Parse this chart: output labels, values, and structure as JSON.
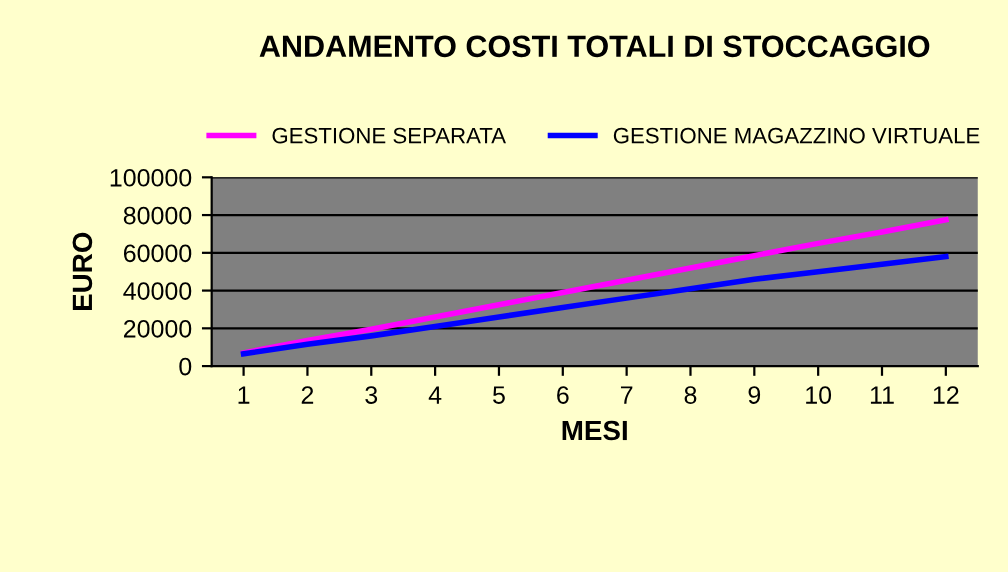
{
  "chart_data": {
    "type": "line",
    "title": "ANDAMENTO COSTI TOTALI DI STOCCAGGIO",
    "xlabel": "MESI",
    "ylabel": "EURO",
    "categories": [
      "1",
      "2",
      "3",
      "4",
      "5",
      "6",
      "7",
      "8",
      "9",
      "10",
      "11",
      "12"
    ],
    "series": [
      {
        "name": "GESTIONE SEPARATA",
        "color": "#ff00ff",
        "values": [
          7000,
          13500,
          19500,
          26000,
          32500,
          39000,
          45500,
          52000,
          58500,
          65000,
          71000,
          77500
        ]
      },
      {
        "name": "GESTIONE MAGAZZINO VIRTUALE",
        "color": "#0000ff",
        "values": [
          6500,
          11500,
          16000,
          21000,
          26000,
          31000,
          36000,
          41000,
          46000,
          50000,
          54000,
          58000
        ]
      }
    ],
    "ylim": [
      0,
      100000
    ],
    "yticks": [
      0,
      20000,
      40000,
      60000,
      80000,
      100000
    ],
    "grid": "y",
    "legend": "top",
    "marker": "none",
    "line_style": "solid"
  }
}
